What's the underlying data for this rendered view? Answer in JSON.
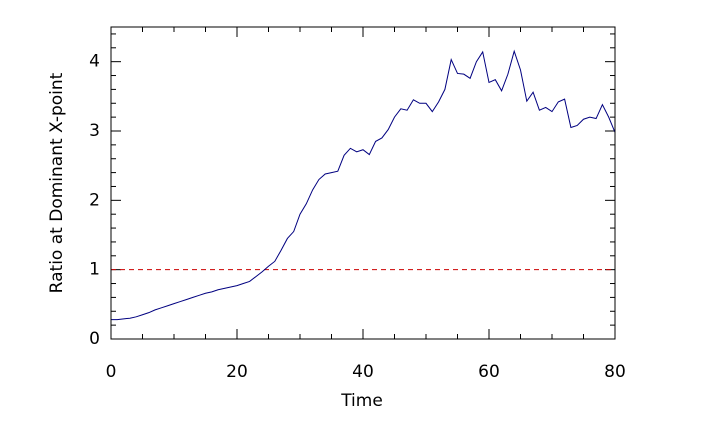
{
  "chart_data": {
    "type": "line",
    "x_label": "Time",
    "y_label": "Ratio at Dominant X-point",
    "xlim": [
      0,
      80
    ],
    "xticks": [
      0,
      20,
      40,
      60,
      80
    ],
    "ylim": [
      0,
      4.5
    ],
    "yticks": [
      0,
      1,
      2,
      3,
      4
    ],
    "x": [
      0,
      1,
      2,
      3,
      4,
      5,
      6,
      7,
      8,
      9,
      10,
      11,
      12,
      13,
      14,
      15,
      16,
      17,
      18,
      19,
      20,
      21,
      22,
      23,
      24,
      25,
      26,
      27,
      28,
      29,
      30,
      31,
      32,
      33,
      34,
      35,
      36,
      37,
      38,
      39,
      40,
      41,
      42,
      43,
      44,
      45,
      46,
      47,
      48,
      49,
      50,
      51,
      52,
      53,
      54,
      55,
      56,
      57,
      58,
      59,
      60,
      61,
      62,
      63,
      64,
      65,
      66,
      67,
      68,
      69,
      70,
      71,
      72,
      73,
      74,
      75,
      76,
      77,
      78,
      79,
      80
    ],
    "series": [
      {
        "color": "#000080",
        "values": [
          0.28,
          0.28,
          0.29,
          0.3,
          0.32,
          0.35,
          0.38,
          0.42,
          0.45,
          0.48,
          0.51,
          0.54,
          0.57,
          0.6,
          0.63,
          0.66,
          0.68,
          0.71,
          0.73,
          0.75,
          0.77,
          0.8,
          0.83,
          0.9,
          0.97,
          1.05,
          1.12,
          1.28,
          1.45,
          1.55,
          1.8,
          1.95,
          2.15,
          2.3,
          2.38,
          2.4,
          2.42,
          2.65,
          2.75,
          2.7,
          2.73,
          2.66,
          2.85,
          2.9,
          3.02,
          3.2,
          3.32,
          3.3,
          3.45,
          3.4,
          3.4,
          3.28,
          3.42,
          3.6,
          4.03,
          3.83,
          3.82,
          3.76,
          4.0,
          4.14,
          3.7,
          3.74,
          3.58,
          3.82,
          4.15,
          3.88,
          3.43,
          3.56,
          3.3,
          3.34,
          3.28,
          3.42,
          3.46,
          3.05,
          3.08,
          3.17,
          3.2,
          3.18,
          3.38,
          3.2,
          2.98
        ]
      }
    ],
    "reference_line": {
      "value": 1,
      "color": "#cc0000",
      "dashed": true
    }
  }
}
